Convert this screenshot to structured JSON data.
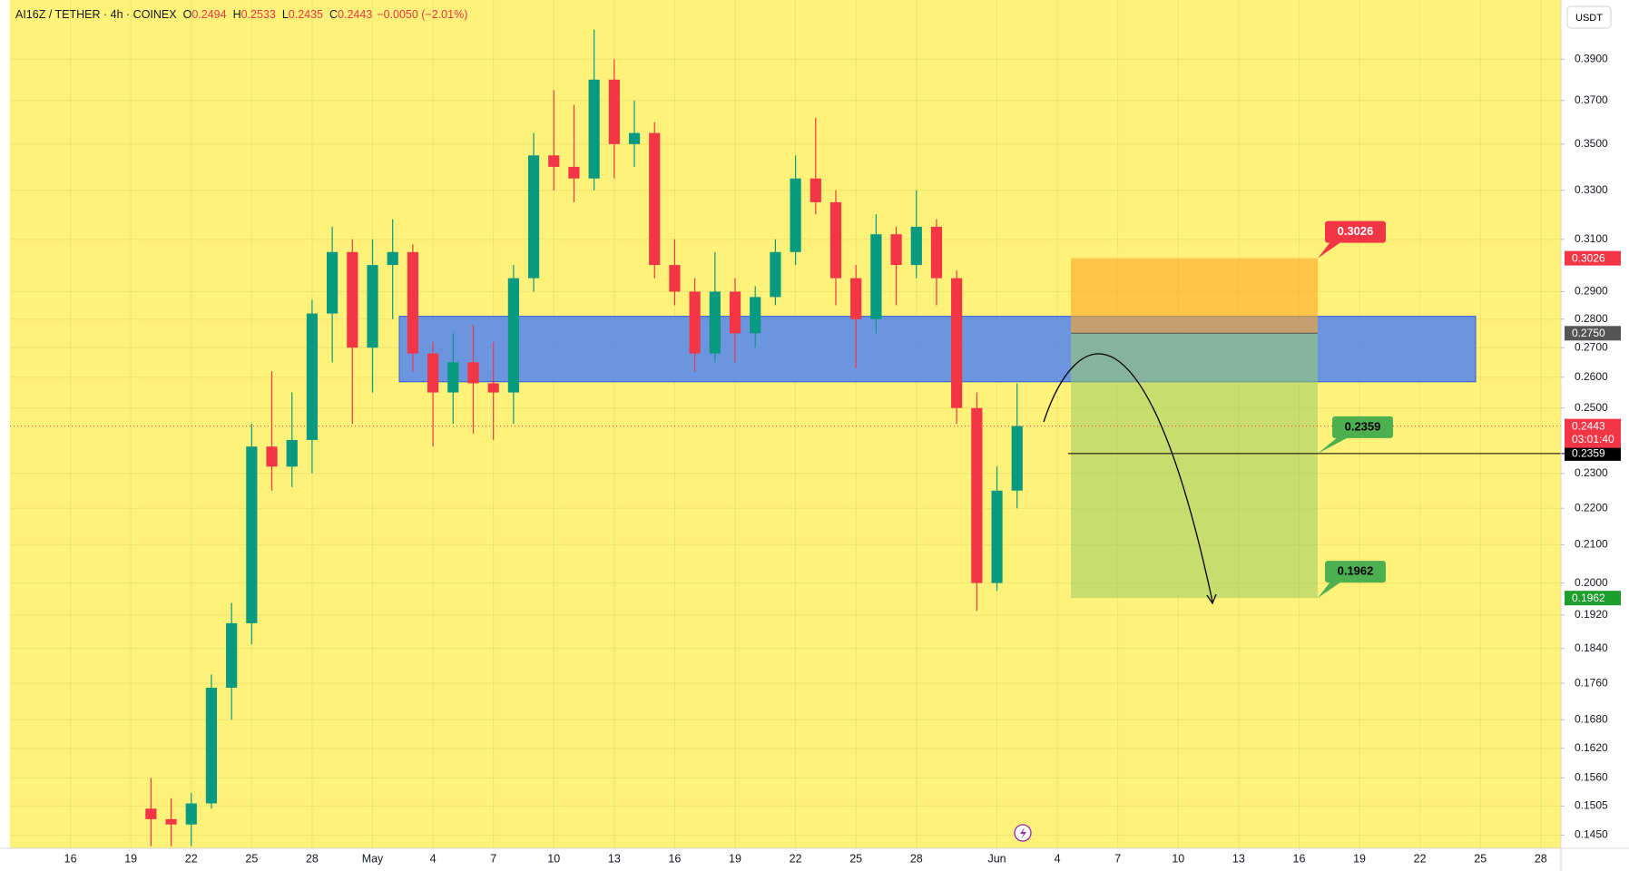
{
  "header": {
    "symbol": "AI16Z / TETHER · 4h · COINEX",
    "ohlc": [
      {
        "key": "O",
        "value": "0.2494"
      },
      {
        "key": "H",
        "value": "0.2533"
      },
      {
        "key": "L",
        "value": "0.2435"
      },
      {
        "key": "C",
        "value": "0.2443"
      }
    ],
    "change": "−0.0050 (−2.01%)"
  },
  "chart_data": {
    "type": "candlestick",
    "log_scale": true,
    "grid": true,
    "currency": "USDT",
    "up_color": "#089981",
    "down_color": "#f23645",
    "background": "#fef27a",
    "x": [
      "04-20",
      "04-21",
      "04-22",
      "04-23",
      "04-24",
      "04-25",
      "04-26",
      "04-27",
      "04-28",
      "04-29",
      "04-30",
      "05-01",
      "05-02",
      "05-03",
      "05-04",
      "05-05",
      "05-06",
      "05-07",
      "05-08",
      "05-09",
      "05-10",
      "05-11",
      "05-12",
      "05-13",
      "05-14",
      "05-15",
      "05-16",
      "05-17",
      "05-18",
      "05-19",
      "05-20",
      "05-21",
      "05-22",
      "05-23",
      "05-24",
      "05-25",
      "05-26",
      "05-27",
      "05-28",
      "05-29",
      "05-30",
      "05-31",
      "06-01",
      "06-02"
    ],
    "open": [
      0.15,
      0.148,
      0.147,
      0.151,
      0.175,
      0.19,
      0.238,
      0.232,
      0.24,
      0.282,
      0.305,
      0.27,
      0.3,
      0.305,
      0.268,
      0.255,
      0.265,
      0.258,
      0.255,
      0.295,
      0.345,
      0.34,
      0.335,
      0.38,
      0.35,
      0.355,
      0.3,
      0.29,
      0.268,
      0.29,
      0.275,
      0.288,
      0.305,
      0.335,
      0.325,
      0.295,
      0.28,
      0.312,
      0.3,
      0.315,
      0.295,
      0.25,
      0.2,
      0.225
    ],
    "high": [
      0.156,
      0.152,
      0.153,
      0.178,
      0.195,
      0.245,
      0.262,
      0.255,
      0.287,
      0.315,
      0.31,
      0.31,
      0.318,
      0.308,
      0.272,
      0.275,
      0.278,
      0.272,
      0.3,
      0.355,
      0.375,
      0.368,
      0.405,
      0.39,
      0.37,
      0.36,
      0.31,
      0.295,
      0.305,
      0.295,
      0.292,
      0.31,
      0.345,
      0.362,
      0.33,
      0.3,
      0.32,
      0.315,
      0.33,
      0.318,
      0.298,
      0.255,
      0.232,
      0.258
    ],
    "low": [
      0.143,
      0.143,
      0.143,
      0.15,
      0.168,
      0.185,
      0.225,
      0.226,
      0.23,
      0.265,
      0.245,
      0.255,
      0.28,
      0.262,
      0.238,
      0.245,
      0.242,
      0.24,
      0.245,
      0.29,
      0.33,
      0.325,
      0.33,
      0.335,
      0.34,
      0.295,
      0.285,
      0.262,
      0.265,
      0.265,
      0.27,
      0.285,
      0.3,
      0.32,
      0.285,
      0.263,
      0.275,
      0.285,
      0.295,
      0.285,
      0.245,
      0.193,
      0.198,
      0.22
    ],
    "close": [
      0.148,
      0.147,
      0.151,
      0.175,
      0.19,
      0.238,
      0.232,
      0.24,
      0.282,
      0.305,
      0.27,
      0.3,
      0.305,
      0.268,
      0.255,
      0.265,
      0.258,
      0.255,
      0.295,
      0.345,
      0.34,
      0.335,
      0.38,
      0.35,
      0.355,
      0.3,
      0.29,
      0.268,
      0.29,
      0.275,
      0.288,
      0.305,
      0.335,
      0.325,
      0.295,
      0.28,
      0.312,
      0.3,
      0.315,
      0.295,
      0.25,
      0.2,
      0.225,
      0.2443
    ],
    "xlim": [
      "04-13",
      "06-29"
    ],
    "xticks": [
      {
        "value": "04-16",
        "label": "16"
      },
      {
        "value": "04-19",
        "label": "19"
      },
      {
        "value": "04-22",
        "label": "22"
      },
      {
        "value": "04-25",
        "label": "25"
      },
      {
        "value": "04-28",
        "label": "28"
      },
      {
        "value": "05-01",
        "label": "May"
      },
      {
        "value": "05-04",
        "label": "4"
      },
      {
        "value": "05-07",
        "label": "7"
      },
      {
        "value": "05-10",
        "label": "10"
      },
      {
        "value": "05-13",
        "label": "13"
      },
      {
        "value": "05-16",
        "label": "16"
      },
      {
        "value": "05-19",
        "label": "19"
      },
      {
        "value": "05-22",
        "label": "22"
      },
      {
        "value": "05-25",
        "label": "25"
      },
      {
        "value": "05-28",
        "label": "28"
      },
      {
        "value": "06-01",
        "label": "Jun"
      },
      {
        "value": "06-04",
        "label": "4"
      },
      {
        "value": "06-07",
        "label": "7"
      },
      {
        "value": "06-10",
        "label": "10"
      },
      {
        "value": "06-13",
        "label": "13"
      },
      {
        "value": "06-16",
        "label": "16"
      },
      {
        "value": "06-19",
        "label": "19"
      },
      {
        "value": "06-22",
        "label": "22"
      },
      {
        "value": "06-25",
        "label": "25"
      },
      {
        "value": "06-28",
        "label": "28"
      }
    ],
    "ylim": [
      0.1426,
      0.4206
    ],
    "yticks": [
      {
        "value": 0.39,
        "label": "0.3900"
      },
      {
        "value": 0.37,
        "label": "0.3700"
      },
      {
        "value": 0.35,
        "label": "0.3500"
      },
      {
        "value": 0.33,
        "label": "0.3300"
      },
      {
        "value": 0.31,
        "label": "0.3100"
      },
      {
        "value": 0.29,
        "label": "0.2900"
      },
      {
        "value": 0.28,
        "label": "0.2800"
      },
      {
        "value": 0.27,
        "label": "0.2700"
      },
      {
        "value": 0.26,
        "label": "0.2600"
      },
      {
        "value": 0.25,
        "label": "0.2500"
      },
      {
        "value": 0.23,
        "label": "0.2300"
      },
      {
        "value": 0.22,
        "label": "0.2200"
      },
      {
        "value": 0.21,
        "label": "0.2100"
      },
      {
        "value": 0.2,
        "label": "0.2000"
      },
      {
        "value": 0.192,
        "label": "0.1920"
      },
      {
        "value": 0.184,
        "label": "0.1840"
      },
      {
        "value": 0.176,
        "label": "0.1760"
      },
      {
        "value": 0.168,
        "label": "0.1680"
      },
      {
        "value": 0.162,
        "label": "0.1620"
      },
      {
        "value": 0.156,
        "label": "0.1560"
      },
      {
        "value": 0.1505,
        "label": "0.1505"
      },
      {
        "value": 0.145,
        "label": "0.1450"
      }
    ],
    "zone": {
      "low": 0.2585,
      "high": 0.281,
      "color": "#5b8bea"
    },
    "position": {
      "stop": 0.3026,
      "entry": {
        "value": 0.275,
        "label": "0.2750"
      },
      "target": 0.1962,
      "stop_color": "#f23645",
      "target_color": "#4caf50"
    },
    "level": 0.2359,
    "last_price": 0.2443,
    "countdown": "03:01:40"
  }
}
